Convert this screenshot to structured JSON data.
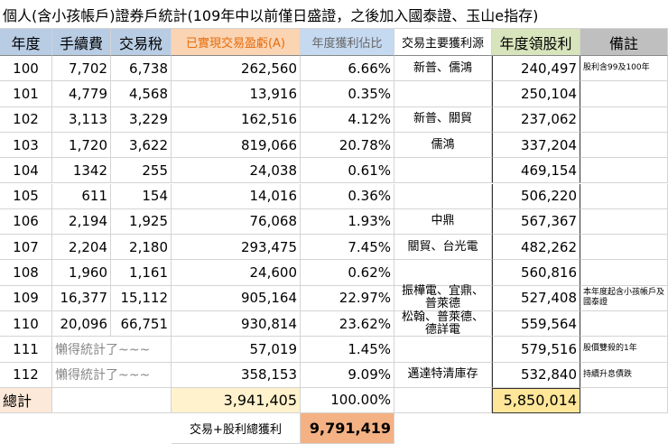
{
  "title": "個人(含小孩帳戶)證券戶統計(109年中以前僅日盛證，之後加入國泰證、玉山e指存)",
  "table": {
    "headers": [
      "年度",
      "手續費",
      "交易稅",
      "已實現交易盈虧(A)",
      "年度獲利佔比",
      "交易主要獲利源",
      "年度領股利",
      "備註"
    ],
    "rows": [
      {
        "year": "100",
        "fee": "7,702",
        "tax": "6,738",
        "pnl": "262,560",
        "share": "6.66%",
        "source": "新普、儒鴻",
        "dividend": "240,497",
        "note": "股利含99及100年"
      },
      {
        "year": "101",
        "fee": "4,779",
        "tax": "4,568",
        "pnl": "13,916",
        "share": "0.35%",
        "dividend": "250,104"
      },
      {
        "year": "102",
        "fee": "3,113",
        "tax": "3,229",
        "pnl": "162,516",
        "share": "4.12%",
        "source": "新普、關貿",
        "dividend": "237,062"
      },
      {
        "year": "103",
        "fee": "1,720",
        "tax": "3,622",
        "pnl": "819,066",
        "share": "20.78%",
        "source": "儒鴻",
        "dividend": "337,204"
      },
      {
        "year": "104",
        "fee": "1342",
        "tax": "255",
        "pnl": "24,038",
        "share": "0.61%",
        "dividend": "469,154"
      },
      {
        "year": "105",
        "fee": "611",
        "tax": "154",
        "pnl": "14,016",
        "share": "0.36%",
        "dividend": "506,220"
      },
      {
        "year": "106",
        "fee": "2,194",
        "tax": "1,925",
        "pnl": "76,068",
        "share": "1.93%",
        "source": "中鼎",
        "dividend": "567,367"
      },
      {
        "year": "107",
        "fee": "2,204",
        "tax": "2,180",
        "pnl": "293,475",
        "share": "7.45%",
        "source": "關貿、台光電",
        "dividend": "482,262"
      },
      {
        "year": "108",
        "fee": "1,960",
        "tax": "1,161",
        "pnl": "24,600",
        "share": "0.62%",
        "dividend": "560,816"
      },
      {
        "year": "109",
        "fee": "16,377",
        "tax": "15,112",
        "pnl": "905,164",
        "share": "22.97%",
        "source": "振樺電、宜鼎、普萊德",
        "dividend": "527,408",
        "note": "本年度起含小孩帳戶及國泰證"
      },
      {
        "year": "110",
        "fee": "20,096",
        "tax": "66,751",
        "pnl": "930,814",
        "share": "23.62%",
        "source": "松翰、普萊德、德詳電",
        "dividend": "559,564"
      },
      {
        "year": "111",
        "lazy": "懶得統計了~~~",
        "pnl": "57,019",
        "share": "1.45%",
        "dividend": "579,516",
        "note": "股價雙殺的1年"
      },
      {
        "year": "112",
        "lazy": "懶得統計了~~~",
        "pnl": "358,153",
        "share": "9.09%",
        "source": "邁達特清庫存",
        "dividend": "532,840",
        "note": "持續升息債跌"
      }
    ],
    "total": {
      "label": "總計",
      "pnl": "3,941,405",
      "share": "100.00%",
      "dividend": "5,850,014"
    },
    "grand_total": {
      "label": "交易+股利總獲利",
      "value": "9,791,419"
    }
  }
}
